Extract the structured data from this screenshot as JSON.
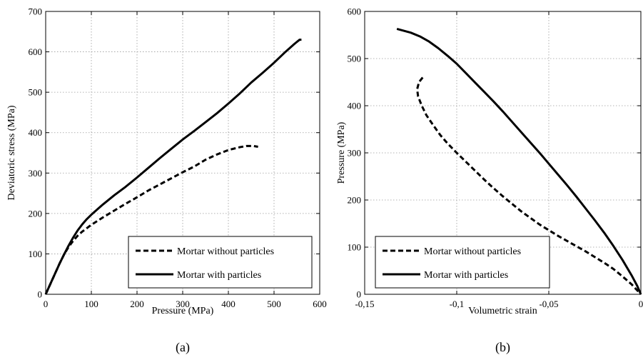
{
  "chart_data": [
    {
      "type": "line",
      "panel_label": "(a)",
      "title": "",
      "xlabel": "Pressure (MPa)",
      "ylabel": "Deviatoric stress (MPa)",
      "xlim": [
        0,
        600
      ],
      "ylim": [
        0,
        700
      ],
      "x_ticks": [
        0,
        100,
        200,
        300,
        400,
        500,
        600
      ],
      "y_ticks": [
        0,
        100,
        200,
        300,
        400,
        500,
        600,
        700
      ],
      "x_tick_labels": [
        "0",
        "100",
        "200",
        "300",
        "400",
        "500",
        "600"
      ],
      "y_tick_labels": [
        "0",
        "100",
        "200",
        "300",
        "400",
        "500",
        "600",
        "700"
      ],
      "grid": true,
      "legend_position": "bottom-right",
      "series": [
        {
          "name": "Mortar without particles",
          "style": "dashed",
          "color": "#000000",
          "points": [
            [
              0,
              0
            ],
            [
              10,
              25
            ],
            [
              20,
              50
            ],
            [
              30,
              75
            ],
            [
              40,
              98
            ],
            [
              50,
              117
            ],
            [
              60,
              132
            ],
            [
              70,
              145
            ],
            [
              80,
              155
            ],
            [
              100,
              172
            ],
            [
              125,
              190
            ],
            [
              150,
              207
            ],
            [
              175,
              224
            ],
            [
              200,
              240
            ],
            [
              225,
              257
            ],
            [
              250,
              272
            ],
            [
              275,
              287
            ],
            [
              300,
              302
            ],
            [
              325,
              316
            ],
            [
              350,
              333
            ],
            [
              375,
              346
            ],
            [
              400,
              357
            ],
            [
              425,
              364
            ],
            [
              440,
              367
            ],
            [
              455,
              367
            ],
            [
              465,
              365
            ]
          ]
        },
        {
          "name": "Mortar with particles",
          "style": "solid",
          "color": "#000000",
          "points": [
            [
              0,
              0
            ],
            [
              10,
              25
            ],
            [
              20,
              50
            ],
            [
              30,
              75
            ],
            [
              40,
              98
            ],
            [
              50,
              120
            ],
            [
              60,
              140
            ],
            [
              70,
              158
            ],
            [
              80,
              173
            ],
            [
              90,
              186
            ],
            [
              100,
              197
            ],
            [
              125,
              222
            ],
            [
              150,
              245
            ],
            [
              175,
              266
            ],
            [
              200,
              289
            ],
            [
              225,
              313
            ],
            [
              250,
              337
            ],
            [
              275,
              360
            ],
            [
              300,
              383
            ],
            [
              325,
              404
            ],
            [
              350,
              426
            ],
            [
              375,
              448
            ],
            [
              400,
              472
            ],
            [
              425,
              497
            ],
            [
              450,
              524
            ],
            [
              475,
              548
            ],
            [
              500,
              573
            ],
            [
              525,
              600
            ],
            [
              545,
              620
            ],
            [
              556,
              630
            ],
            [
              560,
              630
            ]
          ]
        }
      ]
    },
    {
      "type": "line",
      "panel_label": "(b)",
      "title": "",
      "xlabel": "Volumetric strain",
      "ylabel": "Pressure (MPa)",
      "xlim": [
        -0.15,
        0
      ],
      "ylim": [
        0,
        600
      ],
      "x_ticks": [
        -0.15,
        -0.1,
        -0.05,
        0
      ],
      "y_ticks": [
        0,
        100,
        200,
        300,
        400,
        500,
        600
      ],
      "x_tick_labels": [
        "-0,15",
        "-0,1",
        "-0,05",
        "0"
      ],
      "y_tick_labels": [
        "0",
        "100",
        "200",
        "300",
        "400",
        "500",
        "600"
      ],
      "grid": true,
      "legend_position": "bottom-left",
      "series": [
        {
          "name": "Mortar without particles",
          "style": "dashed",
          "color": "#000000",
          "points": [
            [
              -0.1185,
              460
            ],
            [
              -0.1205,
              450
            ],
            [
              -0.1215,
              435
            ],
            [
              -0.121,
              420
            ],
            [
              -0.119,
              400
            ],
            [
              -0.1165,
              380
            ],
            [
              -0.113,
              360
            ],
            [
              -0.109,
              338
            ],
            [
              -0.105,
              320
            ],
            [
              -0.1,
              300
            ],
            [
              -0.095,
              281
            ],
            [
              -0.09,
              262
            ],
            [
              -0.085,
              243
            ],
            [
              -0.08,
              225
            ],
            [
              -0.075,
              208
            ],
            [
              -0.07,
              192
            ],
            [
              -0.065,
              176
            ],
            [
              -0.06,
              162
            ],
            [
              -0.055,
              148
            ],
            [
              -0.05,
              136
            ],
            [
              -0.045,
              124
            ],
            [
              -0.04,
              113
            ],
            [
              -0.035,
              102
            ],
            [
              -0.03,
              91
            ],
            [
              -0.025,
              79
            ],
            [
              -0.02,
              67
            ],
            [
              -0.015,
              54
            ],
            [
              -0.01,
              38
            ],
            [
              -0.005,
              21
            ],
            [
              0,
              0
            ]
          ]
        },
        {
          "name": "Mortar with particles",
          "style": "solid",
          "color": "#000000",
          "points": [
            [
              -0.1325,
              563
            ],
            [
              -0.125,
              555
            ],
            [
              -0.12,
              547
            ],
            [
              -0.115,
              536
            ],
            [
              -0.11,
              522
            ],
            [
              -0.105,
              506
            ],
            [
              -0.1,
              489
            ],
            [
              -0.095,
              469
            ],
            [
              -0.09,
              449
            ],
            [
              -0.085,
              429
            ],
            [
              -0.08,
              409
            ],
            [
              -0.075,
              388
            ],
            [
              -0.07,
              366
            ],
            [
              -0.065,
              344
            ],
            [
              -0.06,
              322
            ],
            [
              -0.055,
              300
            ],
            [
              -0.05,
              277
            ],
            [
              -0.045,
              254
            ],
            [
              -0.04,
              231
            ],
            [
              -0.035,
              207
            ],
            [
              -0.03,
              182
            ],
            [
              -0.025,
              157
            ],
            [
              -0.02,
              131
            ],
            [
              -0.015,
              103
            ],
            [
              -0.01,
              73
            ],
            [
              -0.005,
              40
            ],
            [
              -0.002,
              18
            ],
            [
              0,
              0
            ]
          ]
        }
      ]
    }
  ]
}
